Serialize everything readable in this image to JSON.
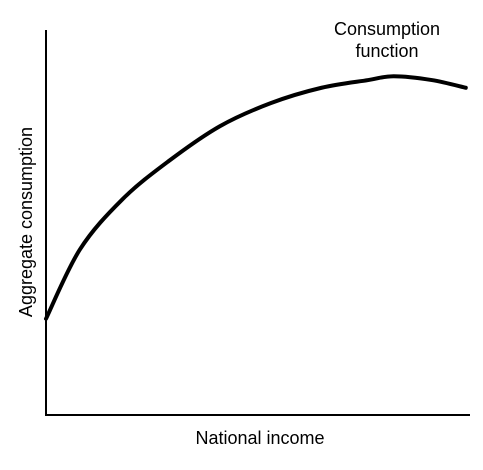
{
  "chart_data": {
    "type": "line",
    "x_label": "National income",
    "y_label": "Aggregate consumption",
    "x": [
      0,
      8,
      18,
      29,
      41,
      53,
      65,
      76,
      82,
      91,
      99
    ],
    "series": [
      {
        "name": "Consumption function",
        "color": "#000000",
        "values": [
          25,
          43,
          56,
          66,
          75,
          81,
          85,
          87,
          88,
          87,
          85
        ]
      }
    ],
    "xlim": [
      0,
      100
    ],
    "ylim": [
      0,
      100
    ],
    "grid": false
  }
}
